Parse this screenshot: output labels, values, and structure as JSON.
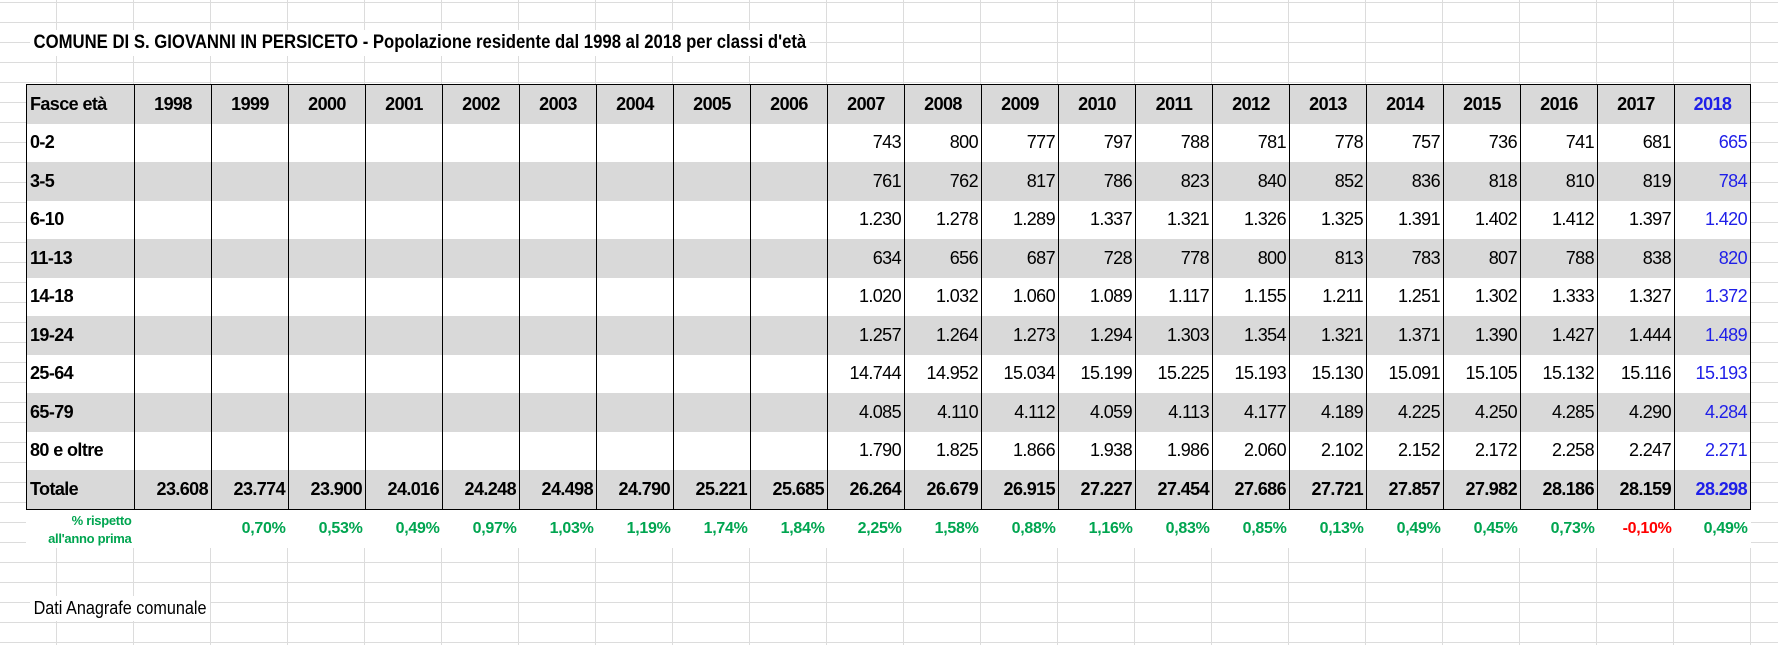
{
  "title": "COMUNE DI S. GIOVANNI IN PERSICETO - Popolazione residente dal 1998 al 2018 per classi d'età",
  "header_label": "Fasce età",
  "years": [
    "1998",
    "1999",
    "2000",
    "2001",
    "2002",
    "2003",
    "2004",
    "2005",
    "2006",
    "2007",
    "2008",
    "2009",
    "2010",
    "2011",
    "2012",
    "2013",
    "2014",
    "2015",
    "2016",
    "2017",
    "2018"
  ],
  "rows": [
    {
      "label": "0-2",
      "values": [
        "",
        "",
        "",
        "",
        "",
        "",
        "",
        "",
        "",
        "743",
        "800",
        "777",
        "797",
        "788",
        "781",
        "778",
        "757",
        "736",
        "741",
        "681",
        "665"
      ]
    },
    {
      "label": "3-5",
      "values": [
        "",
        "",
        "",
        "",
        "",
        "",
        "",
        "",
        "",
        "761",
        "762",
        "817",
        "786",
        "823",
        "840",
        "852",
        "836",
        "818",
        "810",
        "819",
        "784"
      ]
    },
    {
      "label": "6-10",
      "values": [
        "",
        "",
        "",
        "",
        "",
        "",
        "",
        "",
        "",
        "1.230",
        "1.278",
        "1.289",
        "1.337",
        "1.321",
        "1.326",
        "1.325",
        "1.391",
        "1.402",
        "1.412",
        "1.397",
        "1.420"
      ]
    },
    {
      "label": "11-13",
      "values": [
        "",
        "",
        "",
        "",
        "",
        "",
        "",
        "",
        "",
        "634",
        "656",
        "687",
        "728",
        "778",
        "800",
        "813",
        "783",
        "807",
        "788",
        "838",
        "820"
      ]
    },
    {
      "label": "14-18",
      "values": [
        "",
        "",
        "",
        "",
        "",
        "",
        "",
        "",
        "",
        "1.020",
        "1.032",
        "1.060",
        "1.089",
        "1.117",
        "1.155",
        "1.211",
        "1.251",
        "1.302",
        "1.333",
        "1.327",
        "1.372"
      ]
    },
    {
      "label": "19-24",
      "values": [
        "",
        "",
        "",
        "",
        "",
        "",
        "",
        "",
        "",
        "1.257",
        "1.264",
        "1.273",
        "1.294",
        "1.303",
        "1.354",
        "1.321",
        "1.371",
        "1.390",
        "1.427",
        "1.444",
        "1.489"
      ]
    },
    {
      "label": "25-64",
      "values": [
        "",
        "",
        "",
        "",
        "",
        "",
        "",
        "",
        "",
        "14.744",
        "14.952",
        "15.034",
        "15.199",
        "15.225",
        "15.193",
        "15.130",
        "15.091",
        "15.105",
        "15.132",
        "15.116",
        "15.193"
      ]
    },
    {
      "label": "65-79",
      "values": [
        "",
        "",
        "",
        "",
        "",
        "",
        "",
        "",
        "",
        "4.085",
        "4.110",
        "4.112",
        "4.059",
        "4.113",
        "4.177",
        "4.189",
        "4.225",
        "4.250",
        "4.285",
        "4.290",
        "4.284"
      ]
    },
    {
      "label": "80 e oltre",
      "values": [
        "",
        "",
        "",
        "",
        "",
        "",
        "",
        "",
        "",
        "1.790",
        "1.825",
        "1.866",
        "1.938",
        "1.986",
        "2.060",
        "2.102",
        "2.152",
        "2.172",
        "2.258",
        "2.247",
        "2.271"
      ]
    }
  ],
  "total": {
    "label": "Totale",
    "values": [
      "23.608",
      "23.774",
      "23.900",
      "24.016",
      "24.248",
      "24.498",
      "24.790",
      "25.221",
      "25.685",
      "26.264",
      "26.679",
      "26.915",
      "27.227",
      "27.454",
      "27.686",
      "27.721",
      "27.857",
      "27.982",
      "28.186",
      "28.159",
      "28.298"
    ]
  },
  "pct": {
    "label_line1": "% rispetto",
    "label_line2": "all'anno prima",
    "values": [
      "",
      "0,70%",
      "0,53%",
      "0,49%",
      "0,97%",
      "1,03%",
      "1,19%",
      "1,74%",
      "1,84%",
      "2,25%",
      "1,58%",
      "0,88%",
      "1,16%",
      "0,83%",
      "0,85%",
      "0,13%",
      "0,49%",
      "0,45%",
      "0,73%",
      "-0,10%",
      "0,49%"
    ]
  },
  "colors": {
    "highlight_2018": "#1f1fe8",
    "positive_pct": "#00a550",
    "negative_pct": "#ff0000",
    "shade": "#d9d9d9"
  },
  "footer": "Dati Anagrafe comunale"
}
